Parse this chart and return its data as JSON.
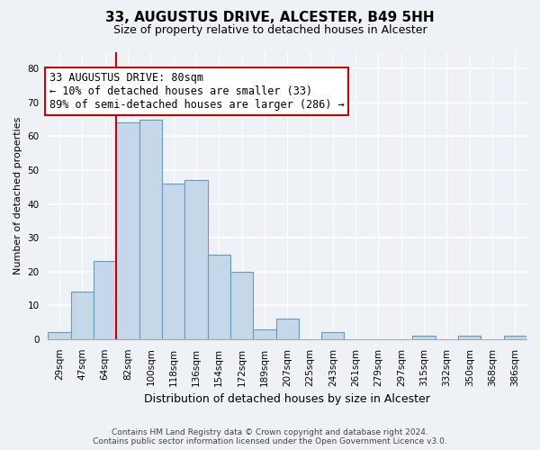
{
  "title": "33, AUGUSTUS DRIVE, ALCESTER, B49 5HH",
  "subtitle": "Size of property relative to detached houses in Alcester",
  "xlabel": "Distribution of detached houses by size in Alcester",
  "ylabel": "Number of detached properties",
  "bin_labels": [
    "29sqm",
    "47sqm",
    "64sqm",
    "82sqm",
    "100sqm",
    "118sqm",
    "136sqm",
    "154sqm",
    "172sqm",
    "189sqm",
    "207sqm",
    "225sqm",
    "243sqm",
    "261sqm",
    "279sqm",
    "297sqm",
    "315sqm",
    "332sqm",
    "350sqm",
    "368sqm",
    "386sqm"
  ],
  "bar_values": [
    2,
    14,
    23,
    64,
    65,
    46,
    47,
    25,
    20,
    3,
    6,
    0,
    2,
    0,
    0,
    0,
    1,
    0,
    1,
    0,
    1
  ],
  "bar_color": "#c5d8ea",
  "bar_edge_color": "#6699bb",
  "ylim": [
    0,
    85
  ],
  "yticks": [
    0,
    10,
    20,
    30,
    40,
    50,
    60,
    70,
    80
  ],
  "property_line_bin": 3,
  "property_line_color": "#cc0000",
  "annotation_text": "33 AUGUSTUS DRIVE: 80sqm\n← 10% of detached houses are smaller (33)\n89% of semi-detached houses are larger (286) →",
  "annotation_box_color": "#ffffff",
  "annotation_box_edge": "#cc0000",
  "footer_line1": "Contains HM Land Registry data © Crown copyright and database right 2024.",
  "footer_line2": "Contains public sector information licensed under the Open Government Licence v3.0.",
  "background_color": "#eef2f7",
  "grid_color": "#ffffff",
  "title_fontsize": 11,
  "subtitle_fontsize": 9,
  "ylabel_fontsize": 8,
  "xlabel_fontsize": 9,
  "tick_fontsize": 7.5,
  "footer_fontsize": 6.5
}
